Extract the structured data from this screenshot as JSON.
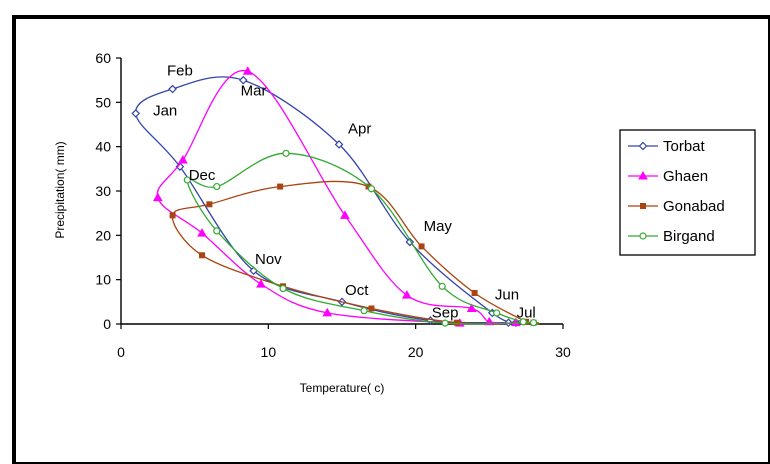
{
  "chart_data": {
    "type": "scatter",
    "title": "",
    "xlabel": "Temperature( c)",
    "ylabel": "Precipitation( mm)",
    "xlim": [
      0,
      30
    ],
    "ylim": [
      0,
      60
    ],
    "x_ticks": [
      "0",
      "10",
      "20",
      "30"
    ],
    "y_ticks": [
      "0",
      "10",
      "20",
      "30",
      "40",
      "50",
      "60"
    ],
    "grid": false,
    "legend_position": "right",
    "series": [
      {
        "name": "Torbat",
        "color": "#3344aa",
        "marker": "diamond",
        "points": [
          [
            1.0,
            47.5
          ],
          [
            3.5,
            53
          ],
          [
            8.3,
            55
          ],
          [
            14.8,
            40.5
          ],
          [
            19.6,
            18.5
          ],
          [
            25.2,
            2.5
          ],
          [
            26.8,
            0.3
          ],
          [
            26.3,
            0.3
          ],
          [
            21.0,
            0.8
          ],
          [
            15.0,
            5
          ],
          [
            9.0,
            12
          ],
          [
            4.0,
            35.5
          ]
        ]
      },
      {
        "name": "Ghaen",
        "color": "#ff00ff",
        "marker": "triangle",
        "points": [
          [
            2.5,
            28.5
          ],
          [
            4.2,
            37
          ],
          [
            8.6,
            57
          ],
          [
            15.2,
            24.5
          ],
          [
            19.4,
            6.5
          ],
          [
            23.8,
            3.5
          ],
          [
            25.0,
            0.5
          ],
          [
            26.8,
            0.3
          ],
          [
            23.0,
            0.2
          ],
          [
            14.0,
            2.5
          ],
          [
            9.5,
            9
          ],
          [
            5.5,
            20.5
          ]
        ]
      },
      {
        "name": "Gonabad",
        "color": "#aa4411",
        "marker": "square",
        "points": [
          [
            3.5,
            24.5
          ],
          [
            6.0,
            27
          ],
          [
            10.8,
            31
          ],
          [
            16.8,
            31
          ],
          [
            20.4,
            17.5
          ],
          [
            24.0,
            7
          ],
          [
            27.5,
            0.5
          ],
          [
            28.0,
            0.3
          ],
          [
            22.8,
            0.3
          ],
          [
            17.0,
            3.5
          ],
          [
            11.0,
            8.5
          ],
          [
            5.5,
            15.5
          ]
        ]
      },
      {
        "name": "Birgand",
        "color": "#33aa33",
        "marker": "circle",
        "points": [
          [
            4.5,
            32.5
          ],
          [
            6.5,
            31
          ],
          [
            11.2,
            38.5
          ],
          [
            17.0,
            30.5
          ],
          [
            21.8,
            8.5
          ],
          [
            25.5,
            2.5
          ],
          [
            27.3,
            0.5
          ],
          [
            28.0,
            0.3
          ],
          [
            22.0,
            0.2
          ],
          [
            16.5,
            3
          ],
          [
            11.0,
            8
          ],
          [
            6.5,
            21
          ]
        ]
      }
    ],
    "annotations": [
      {
        "text": "Jan",
        "x": 3.0,
        "y": 47
      },
      {
        "text": "Feb",
        "x": 4.0,
        "y": 56
      },
      {
        "text": "Mar",
        "x": 9.0,
        "y": 51.5
      },
      {
        "text": "Apr",
        "x": 16.2,
        "y": 43
      },
      {
        "text": "May",
        "x": 21.5,
        "y": 21
      },
      {
        "text": "Jun",
        "x": 26.2,
        "y": 5.5
      },
      {
        "text": "Jul",
        "x": 27.5,
        "y": 1.5
      },
      {
        "text": "Sep",
        "x": 22.0,
        "y": 1.5
      },
      {
        "text": "Oct",
        "x": 16.0,
        "y": 6.5
      },
      {
        "text": "Nov",
        "x": 10.0,
        "y": 13.5
      },
      {
        "text": "Dec",
        "x": 5.5,
        "y": 32.5
      }
    ]
  }
}
